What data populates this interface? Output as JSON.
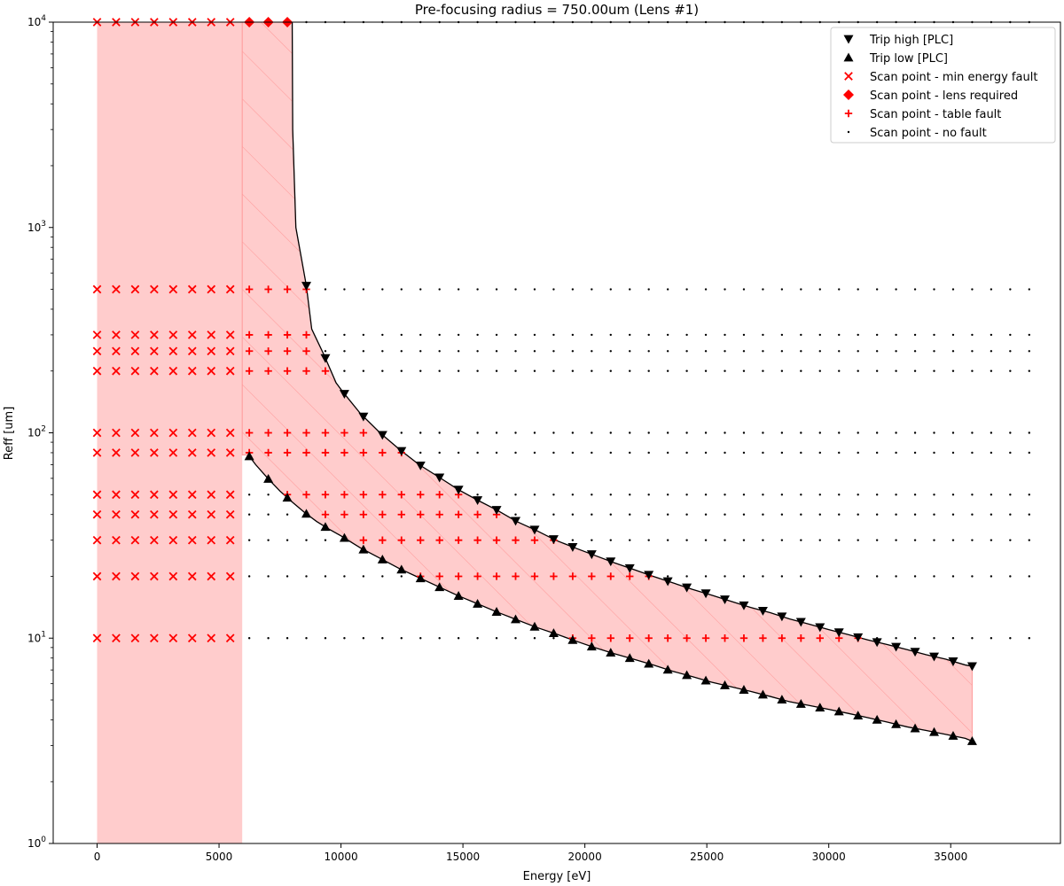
{
  "chart_data": {
    "type": "scatter",
    "title": "Pre-focusing radius = 750.00um (Lens #1)",
    "xlabel": "Energy [eV]",
    "ylabel": "Reff [um]",
    "xlim": [
      -1800,
      39500
    ],
    "ylim": [
      1,
      10000
    ],
    "yscale": "log",
    "grid": false,
    "legend_position": "top-right",
    "xticks": [
      0,
      5000,
      10000,
      15000,
      20000,
      25000,
      30000,
      35000
    ],
    "yticks": [
      {
        "value": 1,
        "base": "10",
        "exp": "0"
      },
      {
        "value": 10,
        "base": "10",
        "exp": "1"
      },
      {
        "value": 100,
        "base": "10",
        "exp": "2"
      },
      {
        "value": 1000,
        "base": "10",
        "exp": "3"
      },
      {
        "value": 10000,
        "base": "10",
        "exp": "4"
      }
    ],
    "colors": {
      "fault_fill": "#ffcccc",
      "hatch": "#ff9a9a",
      "fault_marker": "#ff0000",
      "trip_marker": "#000000",
      "ok_marker": "#000000"
    },
    "min_energy_fault_region": {
      "x_from": 0,
      "x_to": 5950
    },
    "scan_grid": {
      "energies": [
        0,
        780,
        1560,
        2340,
        3120,
        3900,
        4680,
        5460,
        6240,
        7020,
        7800,
        8580,
        9360,
        10140,
        10920,
        11700,
        12480,
        13260,
        14040,
        14820,
        15600,
        16380,
        17160,
        17940,
        18720,
        19500,
        20280,
        21060,
        21840,
        22620,
        23400,
        24180,
        24960,
        25740,
        26520,
        27300,
        28080,
        28860,
        29640,
        30420,
        31200,
        31980,
        32760,
        33540,
        34320,
        35100,
        35880,
        36660,
        37440,
        38220
      ],
      "reff": [
        10,
        20,
        30,
        40,
        50,
        80,
        100,
        200,
        250,
        300,
        500,
        10000
      ]
    },
    "trip_high_curve": {
      "x": [
        8000,
        8020,
        8150,
        8580,
        8800,
        9300,
        9800,
        10080,
        10800,
        11600,
        12400,
        13200,
        14000,
        14800,
        15600,
        16400,
        17200,
        18000,
        18800,
        19600,
        20400,
        21200,
        22000,
        22800,
        23600,
        24400,
        25200,
        26000,
        26800,
        27600,
        28400,
        29200,
        30000,
        30800,
        31600,
        32400,
        33200,
        34000,
        34800,
        35600,
        35880
      ],
      "y": [
        10000,
        3000,
        1000,
        520,
        320,
        240,
        175,
        158,
        124,
        100,
        83,
        70,
        61,
        53,
        47,
        42,
        37,
        33.5,
        30,
        27.5,
        25.3,
        23.3,
        21.6,
        20,
        18.6,
        17.3,
        16.2,
        15.1,
        14.1,
        13.3,
        12.4,
        11.7,
        11,
        10.4,
        9.8,
        9.3,
        8.8,
        8.3,
        7.9,
        7.4,
        7.3
      ]
    },
    "trip_low_curve": {
      "x": [
        6200,
        6500,
        7000,
        7500,
        8000,
        8500,
        9000,
        9500,
        10000,
        10800,
        11600,
        12400,
        13200,
        14000,
        14800,
        15600,
        16400,
        17200,
        18000,
        18800,
        19600,
        20400,
        21200,
        22000,
        22800,
        23600,
        24400,
        25200,
        26000,
        26800,
        27600,
        28400,
        29200,
        30000,
        30800,
        31600,
        32400,
        33200,
        34000,
        34800,
        35600,
        35880
      ],
      "y": [
        78,
        70,
        60,
        52,
        46,
        41,
        37,
        34,
        31.5,
        27.5,
        24.5,
        21.8,
        19.7,
        17.8,
        16.1,
        14.7,
        13.4,
        12.3,
        11.3,
        10.5,
        9.7,
        9.0,
        8.4,
        7.9,
        7.4,
        6.9,
        6.5,
        6.1,
        5.8,
        5.5,
        5.2,
        4.9,
        4.7,
        4.5,
        4.3,
        4.1,
        3.9,
        3.7,
        3.55,
        3.4,
        3.25,
        3.15
      ]
    },
    "trip_high_markers_x": [
      8580,
      9360,
      10140,
      10920,
      11700,
      12480,
      13260,
      14040,
      14820,
      15600,
      16380,
      17160,
      17940,
      18720,
      19500,
      20280,
      21060,
      21840,
      22620,
      23400,
      24180,
      24960,
      25740,
      26520,
      27300,
      28080,
      28860,
      29640,
      30420,
      31200,
      31980,
      32760,
      33540,
      34320,
      35100,
      35880
    ],
    "trip_low_markers_x": [
      6240,
      7020,
      7800,
      8580,
      9360,
      10140,
      10920,
      11700,
      12480,
      13260,
      14040,
      14820,
      15600,
      16380,
      17160,
      17940,
      18720,
      19500,
      20280,
      21060,
      21840,
      22620,
      23400,
      24180,
      24960,
      25740,
      26520,
      27300,
      28080,
      28860,
      29640,
      30420,
      31200,
      31980,
      32760,
      33540,
      34320,
      35100,
      35880
    ],
    "lens_required_points": [
      {
        "x": 6240,
        "y": 10000
      },
      {
        "x": 7020,
        "y": 10000
      },
      {
        "x": 7800,
        "y": 10000
      }
    ],
    "legend": [
      {
        "label": "Trip high [PLC]",
        "marker": "tri-down"
      },
      {
        "label": "Trip low [PLC]",
        "marker": "tri-up"
      },
      {
        "label": "Scan point - min energy fault",
        "marker": "x"
      },
      {
        "label": "Scan point - lens required",
        "marker": "diamond"
      },
      {
        "label": "Scan point - table fault",
        "marker": "plus"
      },
      {
        "label": "Scan point - no fault",
        "marker": "dot"
      }
    ]
  }
}
